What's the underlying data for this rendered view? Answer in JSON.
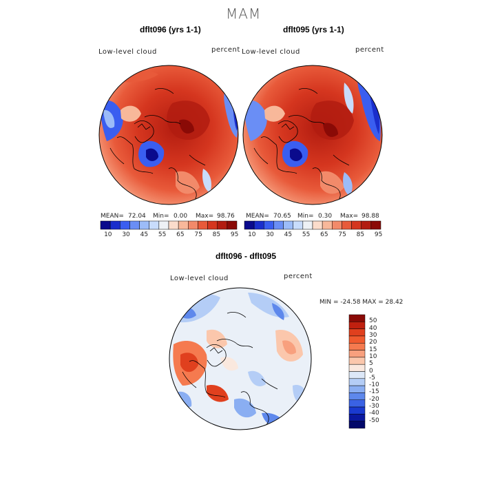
{
  "figure": {
    "title": "MAM"
  },
  "panels": [
    {
      "title": "dflt096 (yrs 1-1)",
      "variable": "Low-level cloud",
      "units": "percent",
      "stats": {
        "mean_label": "MEAN=",
        "mean": "72.04",
        "min_label": "Min=",
        "min": "0.00",
        "max_label": "Max=",
        "max": "98.76"
      }
    },
    {
      "title": "dflt095 (yrs 1-1)",
      "variable": "Low-level cloud",
      "units": "percent",
      "stats": {
        "mean_label": "MEAN=",
        "mean": "70.65",
        "min_label": "Min=",
        "min": "0.30",
        "max_label": "Max=",
        "max": "98.88"
      }
    },
    {
      "title": "dflt096 - dflt095",
      "variable": "Low-level cloud",
      "units": "percent",
      "stats_text": "MIN = -24.58 MAX =  28.42"
    }
  ],
  "colorbar_abs": {
    "labels": [
      "10",
      "30",
      "45",
      "55",
      "65",
      "75",
      "85",
      "95"
    ],
    "colors": [
      "#0a0a8c",
      "#1a2ecc",
      "#3a5ef0",
      "#6a8ef5",
      "#9cbcf8",
      "#c8dcfb",
      "#eef1f5",
      "#fbdccb",
      "#f8b89a",
      "#f28a6a",
      "#e85a3a",
      "#d5361f",
      "#b21c10",
      "#8a0a06"
    ]
  },
  "colorbar_diff": {
    "labels": [
      "50",
      "40",
      "30",
      "20",
      "15",
      "10",
      "5",
      "0",
      "-5",
      "-10",
      "-15",
      "-20",
      "-30",
      "-40",
      "-50"
    ],
    "colors": [
      "#8a0a06",
      "#c0200f",
      "#e0401e",
      "#f05a2e",
      "#f57a4f",
      "#f8a07e",
      "#fbc7ac",
      "#fae8de",
      "#dde8f8",
      "#b4cdf6",
      "#8aaef2",
      "#5e88ec",
      "#3a62e4",
      "#1a3ad0",
      "#0a18a0",
      "#02086a"
    ]
  }
}
